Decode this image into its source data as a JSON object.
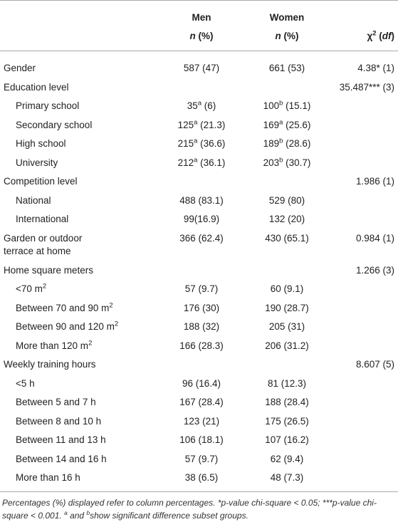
{
  "header": {
    "men": {
      "title": "Men",
      "subtitle": [
        {
          "text": "n",
          "style": "italic"
        },
        {
          "text": " (%)"
        }
      ]
    },
    "women": {
      "title": "Women",
      "subtitle": [
        {
          "text": "n",
          "style": "italic"
        },
        {
          "text": " (%)"
        }
      ]
    },
    "chi": [
      {
        "text": "χ"
      },
      {
        "text": "2",
        "style": "sup"
      },
      {
        "text": " ("
      },
      {
        "text": "df",
        "style": "italic"
      },
      {
        "text": ")"
      }
    ]
  },
  "table": {
    "rows": [
      {
        "label": "Gender",
        "indent": false,
        "men": "587 (47)",
        "women": "661 (53)",
        "chi": "4.38* (1)"
      },
      {
        "label": "Education level",
        "indent": false,
        "chi": "35.487*** (3)"
      },
      {
        "label": "Primary school",
        "indent": true,
        "men": [
          {
            "text": "35"
          },
          {
            "text": "a",
            "style": "sup"
          },
          {
            "text": " (6)"
          }
        ],
        "women": [
          {
            "text": "100"
          },
          {
            "text": "b",
            "style": "sup"
          },
          {
            "text": " (15.1)"
          }
        ]
      },
      {
        "label": "Secondary school",
        "indent": true,
        "men": [
          {
            "text": "125"
          },
          {
            "text": "a",
            "style": "sup"
          },
          {
            "text": " (21.3)"
          }
        ],
        "women": [
          {
            "text": "169"
          },
          {
            "text": "a",
            "style": "sup"
          },
          {
            "text": " (25.6)"
          }
        ]
      },
      {
        "label": "High school",
        "indent": true,
        "men": [
          {
            "text": "215"
          },
          {
            "text": "a",
            "style": "sup"
          },
          {
            "text": " (36.6)"
          }
        ],
        "women": [
          {
            "text": "189"
          },
          {
            "text": "b",
            "style": "sup"
          },
          {
            "text": " (28.6)"
          }
        ]
      },
      {
        "label": "University",
        "indent": true,
        "men": [
          {
            "text": "212"
          },
          {
            "text": "a",
            "style": "sup"
          },
          {
            "text": " (36.1)"
          }
        ],
        "women": [
          {
            "text": "203"
          },
          {
            "text": "b",
            "style": "sup"
          },
          {
            "text": " (30.7)"
          }
        ]
      },
      {
        "label": "Competition level",
        "indent": false,
        "chi": "1.986 (1)"
      },
      {
        "label": "National",
        "indent": true,
        "men": "488 (83.1)",
        "women": "529 (80)"
      },
      {
        "label": "International",
        "indent": true,
        "men": "99(16.9)",
        "women": "132 (20)"
      },
      {
        "label": "Garden or outdoor terrace at home",
        "indent": false,
        "men": "366 (62.4)",
        "women": "430 (65.1)",
        "chi": "0.984 (1)"
      },
      {
        "label": "Home square meters",
        "indent": false,
        "chi": "1.266 (3)"
      },
      {
        "label": [
          {
            "text": "<70 m"
          },
          {
            "text": "2",
            "style": "sup"
          }
        ],
        "indent": true,
        "men": "57 (9.7)",
        "women": "60 (9.1)"
      },
      {
        "label": [
          {
            "text": "Between 70 and 90 m"
          },
          {
            "text": "2",
            "style": "sup"
          }
        ],
        "indent": true,
        "men": "176 (30)",
        "women": "190 (28.7)"
      },
      {
        "label": [
          {
            "text": "Between 90 and 120 m"
          },
          {
            "text": "2",
            "style": "sup"
          }
        ],
        "indent": true,
        "men": "188 (32)",
        "women": "205 (31)"
      },
      {
        "label": [
          {
            "text": "More than 120 m"
          },
          {
            "text": "2",
            "style": "sup"
          }
        ],
        "indent": true,
        "men": "166 (28.3)",
        "women": "206 (31.2)"
      },
      {
        "label": "Weekly training hours",
        "indent": false,
        "chi": "8.607 (5)"
      },
      {
        "label": "<5 h",
        "indent": true,
        "men": "96 (16.4)",
        "women": "81 (12.3)"
      },
      {
        "label": "Between 5 and 7 h",
        "indent": true,
        "men": "167 (28.4)",
        "women": "188 (28.4)"
      },
      {
        "label": "Between 8 and 10 h",
        "indent": true,
        "men": "123 (21)",
        "women": "175 (26.5)"
      },
      {
        "label": "Between 11 and 13 h",
        "indent": true,
        "men": "106 (18.1)",
        "women": "107 (16.2)"
      },
      {
        "label": "Between 14 and 16 h",
        "indent": true,
        "men": "57 (9.7)",
        "women": "62 (9.4)"
      },
      {
        "label": "More than 16 h",
        "indent": true,
        "men": "38 (6.5)",
        "women": "48 (7.3)"
      }
    ]
  },
  "footnote": [
    {
      "text": "Percentages (%) displayed refer to column percentages. *p-value chi-square < 0.05; ***p-value chi-square < 0.001. "
    },
    {
      "text": "a",
      "style": "sup"
    },
    {
      "text": " and "
    },
    {
      "text": "b",
      "style": "sup"
    },
    {
      "text": "show significant difference subset groups."
    }
  ]
}
